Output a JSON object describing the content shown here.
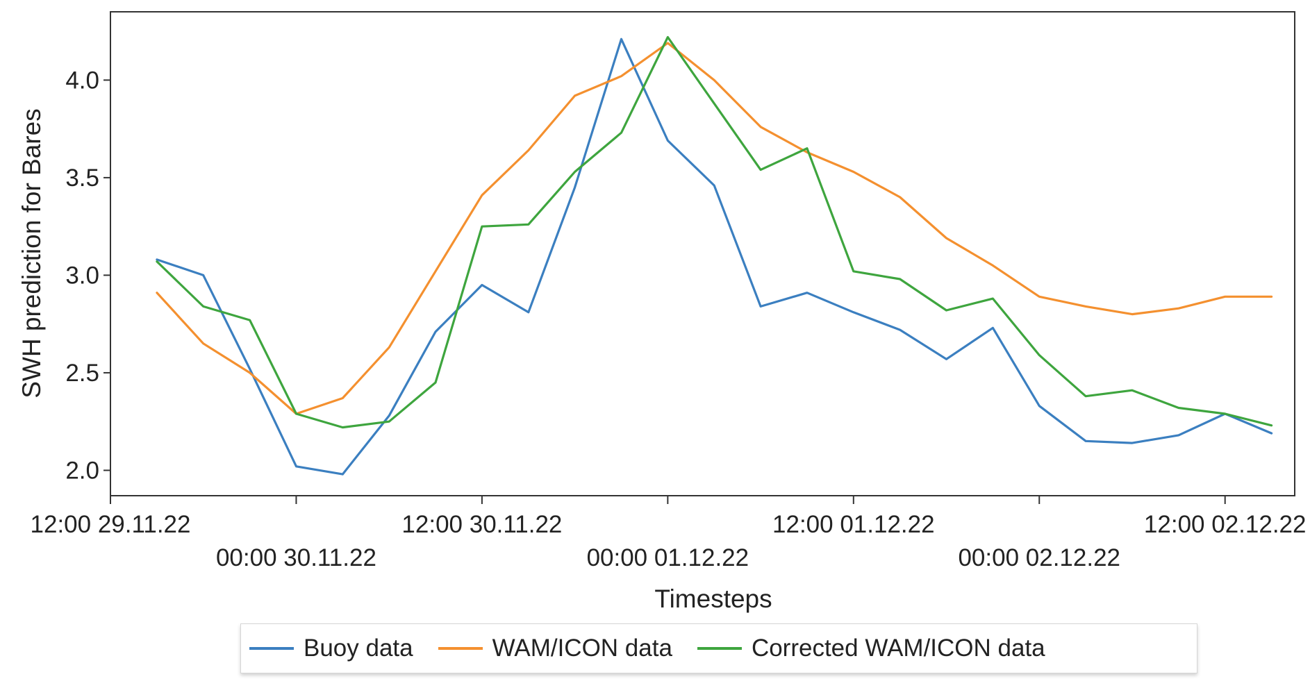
{
  "chart_data": {
    "type": "line",
    "xlabel": "Timesteps",
    "ylabel": "SWH prediction for Bares",
    "ylim": [
      1.87,
      4.35
    ],
    "y_ticks": [
      2.0,
      2.5,
      3.0,
      3.5,
      4.0
    ],
    "y_tick_labels": [
      "2.0",
      "2.5",
      "3.0",
      "3.5",
      "4.0"
    ],
    "x": [
      "29.11.22 15:00",
      "29.11.22 18:00",
      "29.11.22 21:00",
      "30.11.22 00:00",
      "30.11.22 03:00",
      "30.11.22 06:00",
      "30.11.22 09:00",
      "30.11.22 12:00",
      "30.11.22 15:00",
      "30.11.22 18:00",
      "30.11.22 21:00",
      "01.12.22 00:00",
      "01.12.22 03:00",
      "01.12.22 06:00",
      "01.12.22 09:00",
      "01.12.22 12:00",
      "01.12.22 15:00",
      "01.12.22 18:00",
      "01.12.22 21:00",
      "02.12.22 00:00",
      "02.12.22 03:00",
      "02.12.22 06:00",
      "02.12.22 09:00",
      "02.12.22 12:00",
      "02.12.22 15:00"
    ],
    "xlim": [
      "29.11.22 12:00",
      "02.12.22 16:30"
    ],
    "x_ticks_top": [
      {
        "at": "29.11.22 12:00",
        "label": "12:00 29.11.22"
      },
      {
        "at": "30.11.22 12:00",
        "label": "12:00 30.11.22"
      },
      {
        "at": "01.12.22 12:00",
        "label": "12:00 01.12.22"
      },
      {
        "at": "02.12.22 12:00",
        "label": "12:00 02.12.22"
      }
    ],
    "x_ticks_bottom": [
      {
        "at": "30.11.22 00:00",
        "label": "00:00 30.11.22"
      },
      {
        "at": "01.12.22 00:00",
        "label": "00:00 01.12.22"
      },
      {
        "at": "02.12.22 00:00",
        "label": "00:00 02.12.22"
      }
    ],
    "grid": false,
    "legend_position": "bottom",
    "series": [
      {
        "name": "Buoy data",
        "color": "#3b7fc0",
        "values": [
          3.08,
          3.0,
          2.52,
          2.02,
          1.98,
          2.28,
          2.71,
          2.95,
          2.81,
          3.45,
          4.21,
          3.69,
          3.46,
          2.84,
          2.91,
          2.81,
          2.72,
          2.57,
          2.73,
          2.33,
          2.15,
          2.14,
          2.18,
          2.29,
          2.19
        ]
      },
      {
        "name": "WAM/ICON data",
        "color": "#f4902f",
        "values": [
          2.91,
          2.65,
          2.5,
          2.29,
          2.37,
          2.63,
          3.02,
          3.41,
          3.64,
          3.92,
          4.02,
          4.19,
          4.0,
          3.76,
          3.63,
          3.53,
          3.4,
          3.19,
          3.05,
          2.89,
          2.84,
          2.8,
          2.83,
          2.89,
          2.89
        ]
      },
      {
        "name": "Corrected WAM/ICON data",
        "color": "#3ea53e",
        "values": [
          3.07,
          2.84,
          2.77,
          2.29,
          2.22,
          2.25,
          2.45,
          3.25,
          3.26,
          3.53,
          3.73,
          4.22,
          3.88,
          3.54,
          3.65,
          3.02,
          2.98,
          2.82,
          2.88,
          2.59,
          2.38,
          2.41,
          2.32,
          2.29,
          2.23
        ]
      }
    ]
  }
}
